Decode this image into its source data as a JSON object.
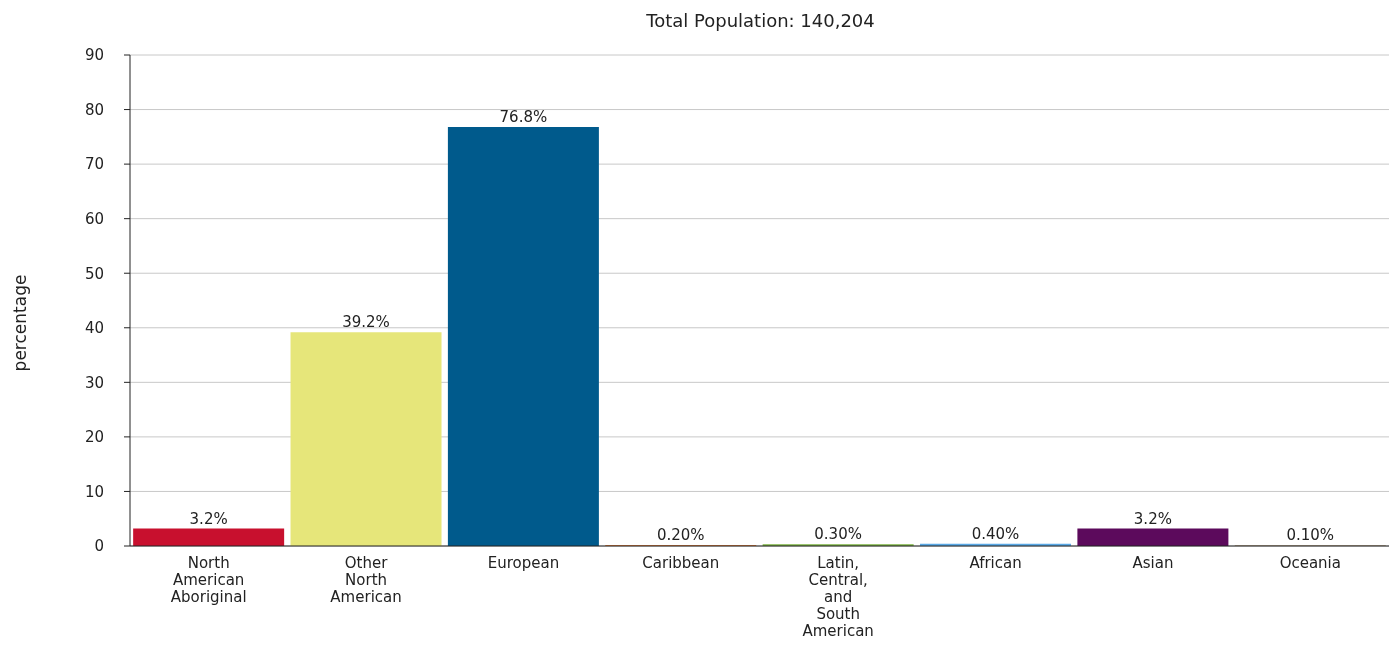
{
  "chart_data": {
    "type": "bar",
    "title": "Total Population: 140,204",
    "ylabel": "percentage",
    "categories": [
      "North American Aboriginal",
      "Other North American",
      "European",
      "Caribbean",
      "Latin, Central, and South American",
      "African",
      "Asian",
      "Oceania"
    ],
    "values": [
      3.2,
      39.2,
      76.8,
      0.2,
      0.3,
      0.4,
      3.2,
      0.1
    ],
    "value_labels": [
      "3.2%",
      "39.2%",
      "76.8%",
      "0.20%",
      "0.30%",
      "0.40%",
      "3.2%",
      "0.10%"
    ],
    "colors": [
      "#c8102e",
      "#e6e67a",
      "#005a8c",
      "#e07b39",
      "#7bb241",
      "#5aa9e6",
      "#5c0a5c",
      "#8c6d3a"
    ],
    "ylim": [
      0,
      90
    ],
    "yticks": [
      0,
      10,
      20,
      30,
      40,
      50,
      60,
      70,
      80,
      90
    ],
    "grid": "y"
  }
}
